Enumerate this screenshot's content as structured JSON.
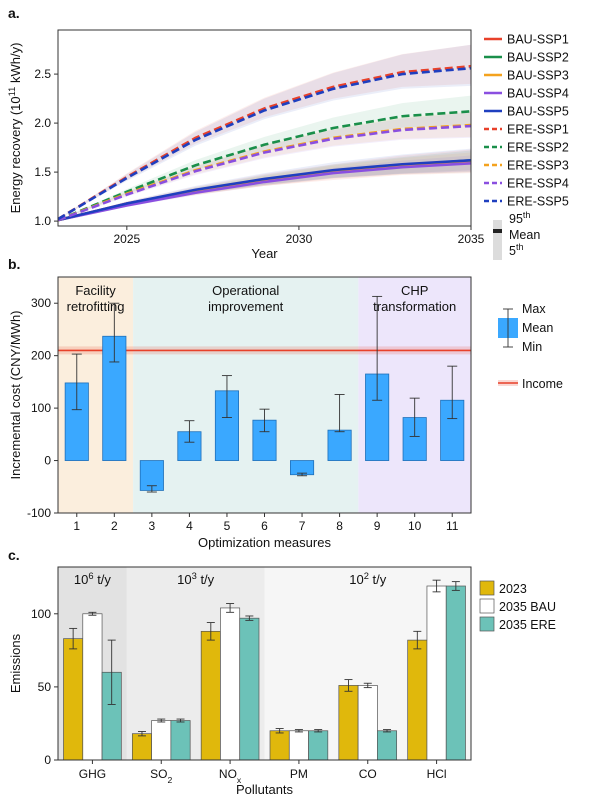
{
  "panel_labels": [
    "a.",
    "b.",
    "c."
  ],
  "chart_data": [
    {
      "type": "line",
      "xlabel": "Year",
      "ylabel": "Energy recovery (10",
      "ylabel_sup": "11",
      "ylabel_unit": " kWh/y)",
      "xlim": [
        2023,
        2035
      ],
      "ylim": [
        0.95,
        2.95
      ],
      "xticks": [
        "2025",
        "2030",
        "2035"
      ],
      "yticks": [
        "1.0",
        "1.5",
        "2.0",
        "2.5"
      ],
      "series": [
        {
          "name": "BAU-SSP1",
          "color": "#e8412a",
          "style": "solid",
          "x": [
            2023,
            2025,
            2027,
            2029,
            2031,
            2033,
            2035
          ],
          "y": [
            1.01,
            1.18,
            1.31,
            1.42,
            1.5,
            1.57,
            1.61
          ],
          "band": [
            0.12,
            0.12
          ]
        },
        {
          "name": "BAU-SSP2",
          "color": "#1a8f4a",
          "style": "solid",
          "x": [
            2023,
            2025,
            2027,
            2029,
            2031,
            2033,
            2035
          ],
          "y": [
            1.01,
            1.17,
            1.31,
            1.42,
            1.51,
            1.57,
            1.62
          ],
          "band": [
            0.1,
            0.1
          ]
        },
        {
          "name": "BAU-SSP3",
          "color": "#f4a21e",
          "style": "solid",
          "x": [
            2023,
            2025,
            2027,
            2029,
            2031,
            2033,
            2035
          ],
          "y": [
            1.01,
            1.17,
            1.3,
            1.41,
            1.5,
            1.56,
            1.6
          ],
          "band": [
            0.1,
            0.1
          ]
        },
        {
          "name": "BAU-SSP4",
          "color": "#8a4fe0",
          "style": "solid",
          "x": [
            2023,
            2025,
            2027,
            2029,
            2031,
            2033,
            2035
          ],
          "y": [
            1.01,
            1.16,
            1.29,
            1.4,
            1.49,
            1.55,
            1.59
          ],
          "band": [
            0.08,
            0.08
          ]
        },
        {
          "name": "BAU-SSP5",
          "color": "#1f3fbf",
          "style": "solid",
          "x": [
            2023,
            2025,
            2027,
            2029,
            2031,
            2033,
            2035
          ],
          "y": [
            1.01,
            1.18,
            1.32,
            1.43,
            1.52,
            1.58,
            1.62
          ],
          "band": [
            0.12,
            0.12
          ]
        },
        {
          "name": "ERE-SSP1",
          "color": "#e8412a",
          "style": "dashed",
          "x": [
            2023,
            2025,
            2027,
            2029,
            2031,
            2033,
            2035
          ],
          "y": [
            1.02,
            1.45,
            1.85,
            2.15,
            2.37,
            2.52,
            2.58
          ],
          "band": [
            0.18,
            0.22
          ]
        },
        {
          "name": "ERE-SSP2",
          "color": "#1a8f4a",
          "style": "dashed",
          "x": [
            2023,
            2025,
            2027,
            2029,
            2031,
            2033,
            2035
          ],
          "y": [
            1.01,
            1.3,
            1.57,
            1.78,
            1.95,
            2.07,
            2.12
          ],
          "band": [
            0.14,
            0.16
          ]
        },
        {
          "name": "ERE-SSP3",
          "color": "#f4a21e",
          "style": "dashed",
          "x": [
            2023,
            2025,
            2027,
            2029,
            2031,
            2033,
            2035
          ],
          "y": [
            1.01,
            1.28,
            1.52,
            1.71,
            1.85,
            1.94,
            1.98
          ],
          "band": [
            0.12,
            0.14
          ]
        },
        {
          "name": "ERE-SSP4",
          "color": "#8a4fe0",
          "style": "dashed",
          "x": [
            2023,
            2025,
            2027,
            2029,
            2031,
            2033,
            2035
          ],
          "y": [
            1.01,
            1.27,
            1.51,
            1.7,
            1.84,
            1.93,
            1.97
          ],
          "band": [
            0.12,
            0.14
          ]
        },
        {
          "name": "ERE-SSP5",
          "color": "#1f3fbf",
          "style": "dashed",
          "x": [
            2023,
            2025,
            2027,
            2029,
            2031,
            2033,
            2035
          ],
          "y": [
            1.02,
            1.44,
            1.83,
            2.13,
            2.35,
            2.5,
            2.56
          ],
          "band": [
            0.18,
            0.24
          ]
        }
      ],
      "band_legend": {
        "top": "95",
        "top_sup": "th",
        "mid": "Mean",
        "bottom": "5",
        "bottom_sup": "th"
      }
    },
    {
      "type": "bar",
      "xlabel": "Optimization measures",
      "ylabel": "Incremental cost (CNY/MWh)",
      "ylim": [
        -100,
        350
      ],
      "yticks": [
        "-100",
        "0",
        "100",
        "200",
        "300"
      ],
      "categories": [
        "1",
        "2",
        "3",
        "4",
        "5",
        "6",
        "7",
        "8",
        "9",
        "10",
        "11"
      ],
      "mean": [
        148,
        237,
        -57,
        55,
        133,
        77,
        -27,
        58,
        165,
        82,
        115
      ],
      "min": [
        97,
        188,
        -60,
        35,
        82,
        55,
        -29,
        55,
        115,
        46,
        80
      ],
      "max": [
        203,
        300,
        -48,
        76,
        162,
        98,
        -24,
        126,
        313,
        119,
        180
      ],
      "bar_color": "#3aa8ff",
      "income": 210,
      "income_color": "#e8412a",
      "regions": [
        {
          "label_lines": [
            "Facility",
            "retrofitting"
          ],
          "from": 1,
          "to": 2,
          "color": "#fbeedd"
        },
        {
          "label_lines": [
            "Operational",
            "improvement"
          ],
          "from": 3,
          "to": 8,
          "color": "#e5f2f1"
        },
        {
          "label_lines": [
            "CHP",
            "transformation"
          ],
          "from": 9,
          "to": 11,
          "color": "#ede6fb"
        }
      ],
      "legend": {
        "max": "Max",
        "mean": "Mean",
        "min": "Min",
        "income": "Income"
      }
    },
    {
      "type": "bar",
      "xlabel": "Pollutants",
      "ylabel": "Emissions",
      "ylim": [
        0,
        132
      ],
      "yticks": [
        "0",
        "50",
        "100"
      ],
      "categories": [
        "GHG",
        "SO",
        "NO",
        "PM",
        "CO",
        "HCl"
      ],
      "category_subs": [
        "",
        "2",
        "x",
        "",
        "",
        ""
      ],
      "series": [
        {
          "name": "2023",
          "color": "#e0b80c",
          "values": [
            83,
            18,
            88,
            20,
            51,
            82
          ],
          "err": [
            7,
            1.5,
            6,
            1.5,
            4,
            6
          ]
        },
        {
          "name": "2035 BAU",
          "color": "#ffffff",
          "values": [
            100,
            27,
            104,
            20,
            51,
            119
          ],
          "err": [
            1,
            1,
            3,
            0.8,
            1.5,
            4
          ]
        },
        {
          "name": "2035 ERE",
          "color": "#6cc2b8",
          "values": [
            60,
            27,
            97,
            20,
            20,
            119
          ],
          "err": [
            22,
            1,
            1.5,
            0.8,
            0.8,
            3
          ]
        }
      ],
      "regions": [
        {
          "label": "10",
          "sup": "6",
          "unit": " t/y",
          "from": 0,
          "to": 0,
          "color": "#e2e2e2"
        },
        {
          "label": "10",
          "sup": "3",
          "unit": " t/y",
          "from": 1,
          "to": 2,
          "color": "#ececec"
        },
        {
          "label": "10",
          "sup": "2",
          "unit": " t/y",
          "from": 3,
          "to": 5,
          "color": "#f6f6f6"
        }
      ]
    }
  ]
}
